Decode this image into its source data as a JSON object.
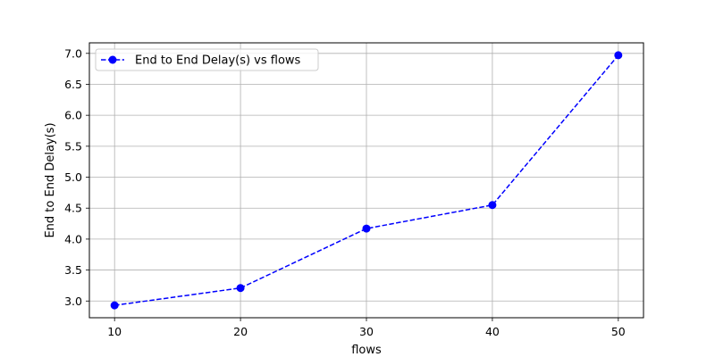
{
  "chart_data": {
    "type": "line",
    "x": [
      10,
      20,
      30,
      40,
      50
    ],
    "series": [
      {
        "name": "End to End Delay(s) vs flows",
        "values": [
          2.93,
          3.21,
          4.17,
          4.55,
          6.97
        ],
        "color": "#0000ff",
        "line_style": "dashed",
        "marker": "circle"
      }
    ],
    "xlabel": "flows",
    "ylabel": "End to End Delay(s)",
    "xlim": [
      8,
      52
    ],
    "ylim": [
      2.73,
      7.17
    ],
    "xticks": [
      10,
      20,
      30,
      40,
      50
    ],
    "yticks": [
      3.0,
      3.5,
      4.0,
      4.5,
      5.0,
      5.5,
      6.0,
      6.5,
      7.0
    ],
    "xtick_labels": [
      "10",
      "20",
      "30",
      "40",
      "50"
    ],
    "ytick_labels": [
      "3.0",
      "3.5",
      "4.0",
      "4.5",
      "5.0",
      "5.5",
      "6.0",
      "6.5",
      "7.0"
    ],
    "grid": true,
    "legend_position": "top-left"
  }
}
